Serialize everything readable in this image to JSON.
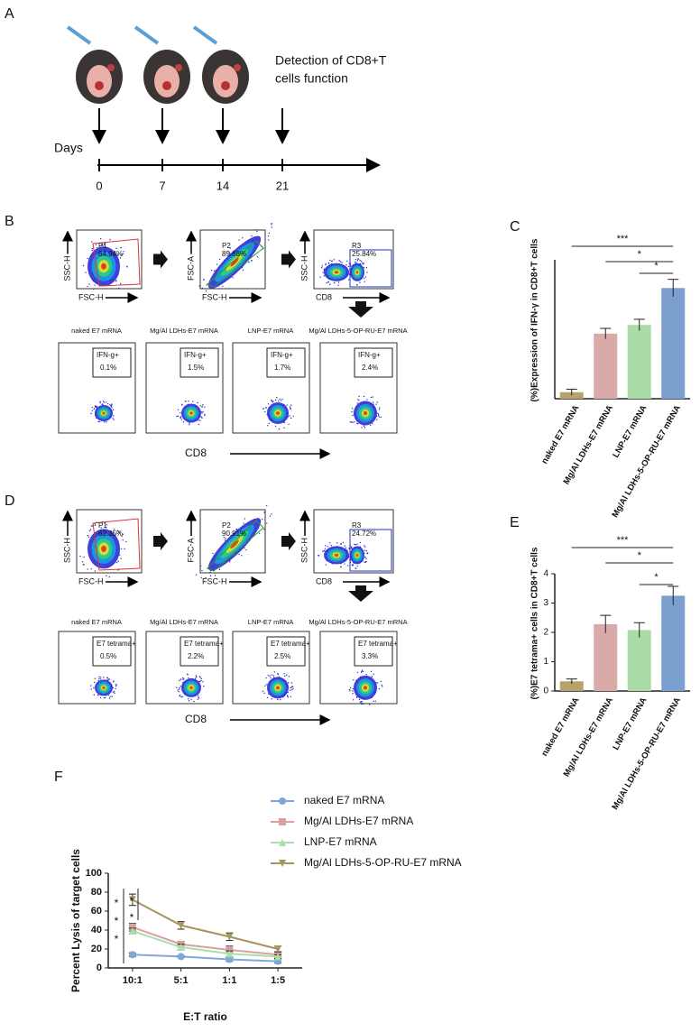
{
  "panel_a": {
    "label": "A",
    "days_label": "Days",
    "days": [
      "0",
      "7",
      "14",
      "21"
    ],
    "detection": [
      "Detection of CD8+T",
      "cells function"
    ]
  },
  "panel_b": {
    "label": "B",
    "x_axis": "CD8",
    "gates": [
      {
        "y_axis": "SSC-H",
        "x_axis": "FSC-H",
        "gate": "P1",
        "percent": "64.94%"
      },
      {
        "y_axis": "FSC-A",
        "x_axis": "FSC-H",
        "gate": "P2",
        "percent": "89.88%"
      },
      {
        "y_axis": "SSC-H",
        "x_axis": "CD8",
        "gate": "R3",
        "percent": "25.84%"
      }
    ],
    "samples": [
      {
        "title": "naked E7 mRNA",
        "gate": "IFN-g+",
        "percent": "0.1%"
      },
      {
        "title": "Mg/Al LDHs-E7 mRNA",
        "gate": "IFN-g+",
        "percent": "1.5%"
      },
      {
        "title": "LNP-E7 mRNA",
        "gate": "IFN-g+",
        "percent": "1.7%"
      },
      {
        "title": "Mg/Al LDHs-5-OP-RU-E7 mRNA",
        "gate": "IFN-g+",
        "percent": "2.4%"
      }
    ]
  },
  "panel_d": {
    "label": "D",
    "x_axis": "CD8",
    "gates": [
      {
        "y_axis": "SSC-H",
        "x_axis": "FSC-H",
        "gate": "P1",
        "percent": "62.35%"
      },
      {
        "y_axis": "FSC-A",
        "x_axis": "FSC-H",
        "gate": "P2",
        "percent": "90.91%"
      },
      {
        "y_axis": "SSC-H",
        "x_axis": "CD8",
        "gate": "R3",
        "percent": "24.72%"
      }
    ],
    "samples": [
      {
        "title": "naked E7 mRNA",
        "gate": "E7 tetrama+",
        "percent": "0.5%"
      },
      {
        "title": "Mg/Al LDHs-E7 mRNA",
        "gate": "E7 tetrama+",
        "percent": "2.2%"
      },
      {
        "title": "LNP-E7 mRNA",
        "gate": "E7 tetrama+",
        "percent": "2.5%"
      },
      {
        "title": "Mg/Al LDHs-5-OP-RU-E7 mRNA",
        "gate": "E7 tetrama+",
        "percent": "3.3%"
      }
    ]
  },
  "chart_data": [
    {
      "type": "bar",
      "panel": "C",
      "y_label": "(%)Expression of IFN-γ in CD8+T cells",
      "categories": [
        "naked E7 mRNA",
        "Mg/Al LDHs-E7 mRNA",
        "LNP-E7 mRNA",
        "Mg/Al LDHs-5-OP-RU-E7 mRNA"
      ],
      "values": [
        0.15,
        1.5,
        1.7,
        2.55
      ],
      "errors": [
        0.07,
        0.12,
        0.13,
        0.2
      ],
      "colors": [
        "#b5a36a",
        "#d9aaa8",
        "#a9dca6",
        "#7b9fcf"
      ],
      "ylim": [
        0,
        3.2
      ],
      "annotations": [
        "***",
        "*",
        "*"
      ]
    },
    {
      "type": "bar",
      "panel": "E",
      "y_label": "(%)E7 tetrama+ cells in CD8+T cells",
      "categories": [
        "naked E7 mRNA",
        "Mg/Al LDHs-E7 mRNA",
        "LNP-E7 mRNA",
        "Mg/Al LDHs-5-OP-RU-E7 mRNA"
      ],
      "values": [
        0.33,
        2.28,
        2.08,
        3.25
      ],
      "errors": [
        0.08,
        0.3,
        0.25,
        0.32
      ],
      "colors": [
        "#b5a36a",
        "#d9aaa8",
        "#a9dca6",
        "#7b9fcf"
      ],
      "ylim": [
        0,
        4
      ],
      "yticks": [
        0,
        1,
        2,
        3,
        4
      ],
      "annotations": [
        "***",
        "*",
        "*"
      ]
    },
    {
      "type": "line",
      "panel": "F",
      "y_label": "Percent Lysis of target cells",
      "x_label": "E:T ratio",
      "categories": [
        "10:1",
        "5:1",
        "1:1",
        "1:5"
      ],
      "series": [
        {
          "name": "naked E7 mRNA",
          "color": "#7fa8d8",
          "values": [
            14,
            12,
            9,
            7
          ],
          "errors": [
            2,
            1,
            2,
            2
          ]
        },
        {
          "name": "Mg/Al LDHs-E7 mRNA",
          "color": "#d9a0a0",
          "values": [
            43,
            25,
            19,
            14
          ],
          "errors": [
            4,
            3,
            4,
            3
          ]
        },
        {
          "name": "LNP-E7 mRNA",
          "color": "#a8e0a8",
          "values": [
            39,
            22,
            15,
            12
          ],
          "errors": [
            3,
            3,
            3,
            2
          ]
        },
        {
          "name": "Mg/Al LDHs-5-OP-RU-E7 mRNA",
          "color": "#a89460",
          "values": [
            72,
            45,
            33,
            20
          ],
          "errors": [
            6,
            4,
            4,
            3
          ]
        }
      ],
      "ylim": [
        0,
        100
      ],
      "yticks": [
        0,
        20,
        40,
        60,
        80,
        100
      ],
      "annotations": [
        "*",
        "*",
        "*",
        "*",
        "*"
      ]
    }
  ]
}
